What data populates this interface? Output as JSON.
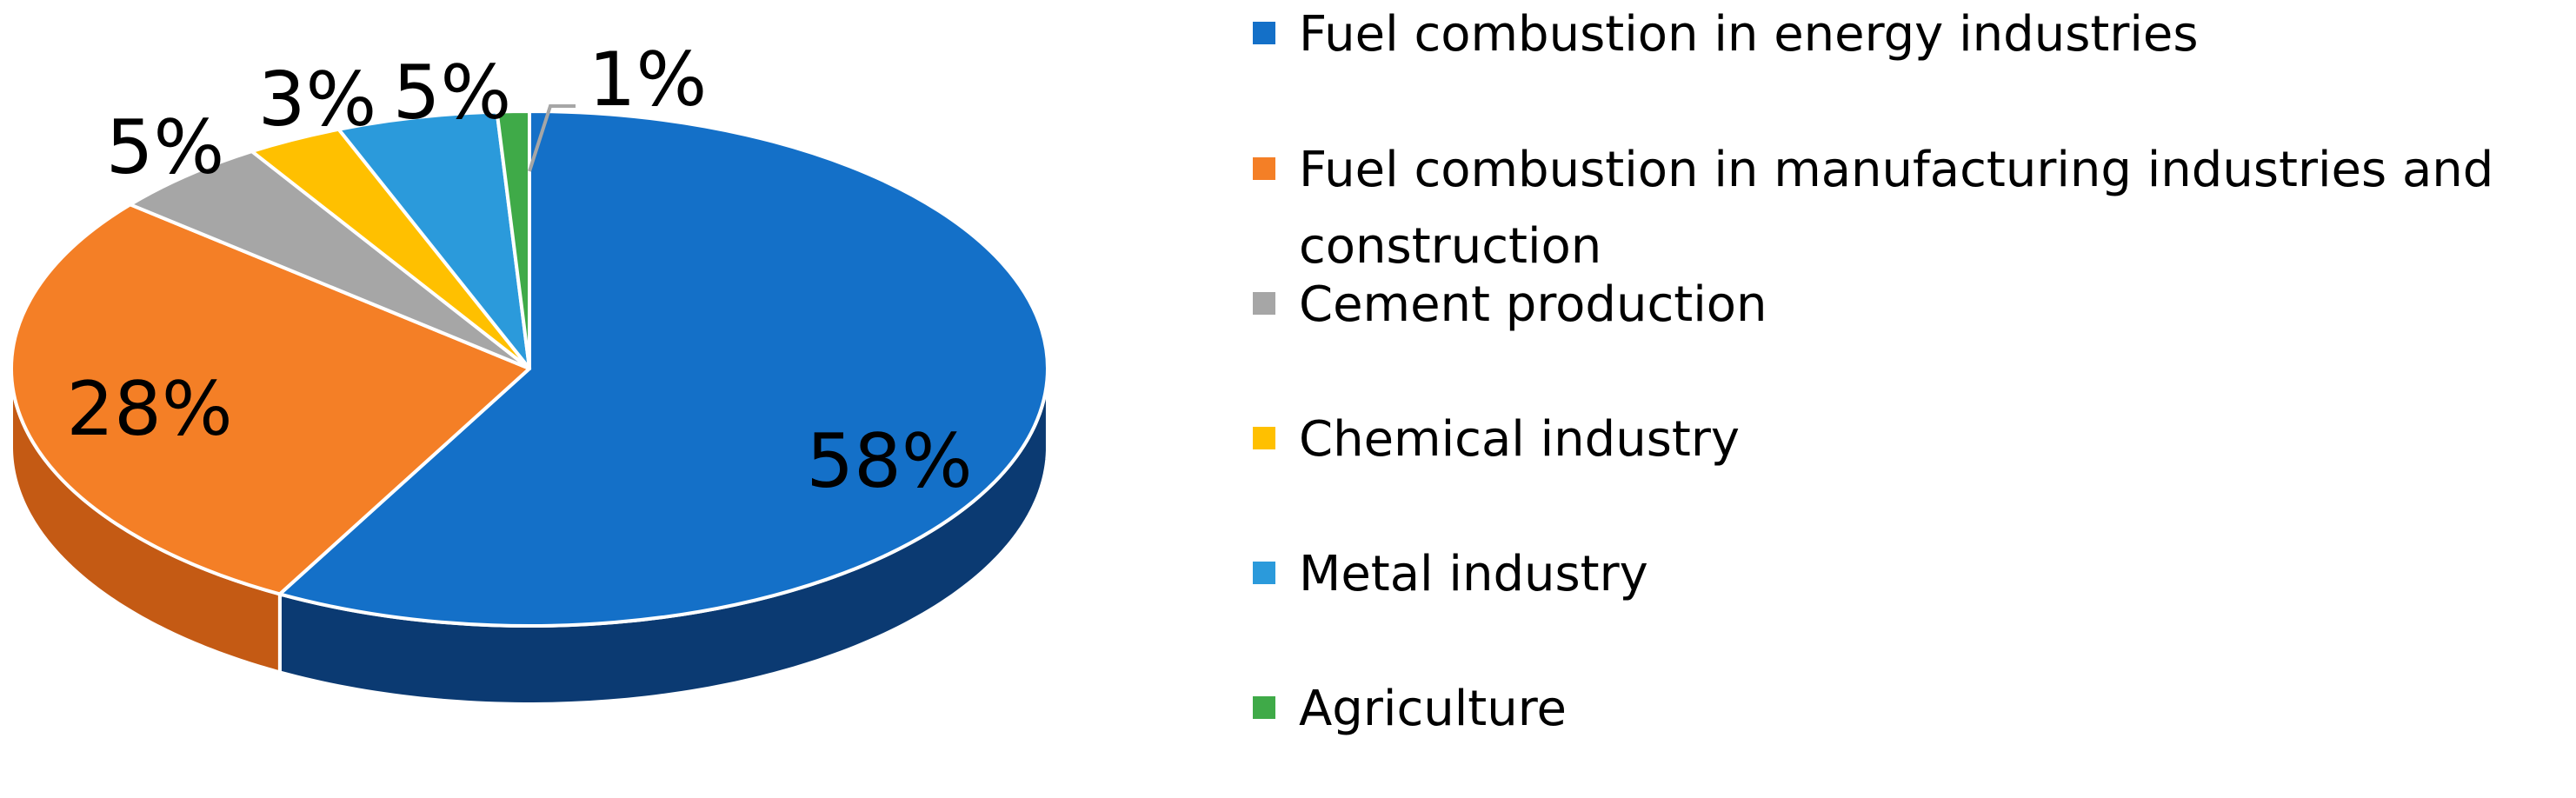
{
  "chart_data": {
    "type": "pie",
    "three_d": true,
    "title": "",
    "start_angle_deg": 90,
    "direction": "clockwise",
    "legend_placement": "right",
    "slices": [
      {
        "key": "energy",
        "name": "Fuel combustion in energy industries",
        "value": 58,
        "label": "58%",
        "color": "#1470C8",
        "side_color": "#0B3A72"
      },
      {
        "key": "manufacturing",
        "name_lines": [
          "Fuel combustion in manufacturing industries and",
          "construction"
        ],
        "value": 28,
        "label": "28%",
        "color": "#F47F26",
        "side_color": "#C45A14"
      },
      {
        "key": "cement",
        "name": "Cement production",
        "value": 5,
        "label": "5%",
        "color": "#A6A6A6",
        "side_color": "#7F7F7F"
      },
      {
        "key": "chemical",
        "name": "Chemical industry",
        "value": 3,
        "label": "3%",
        "color": "#FFC000",
        "side_color": "#C79400"
      },
      {
        "key": "metal",
        "name": "Metal industry",
        "value": 5,
        "label": "5%",
        "color": "#2B9ADB",
        "side_color": "#1E6EA0"
      },
      {
        "key": "agriculture",
        "name": "Agriculture",
        "value": 1,
        "label": "1%",
        "color": "#3FAA48",
        "side_color": "#2B7A32"
      }
    ]
  }
}
